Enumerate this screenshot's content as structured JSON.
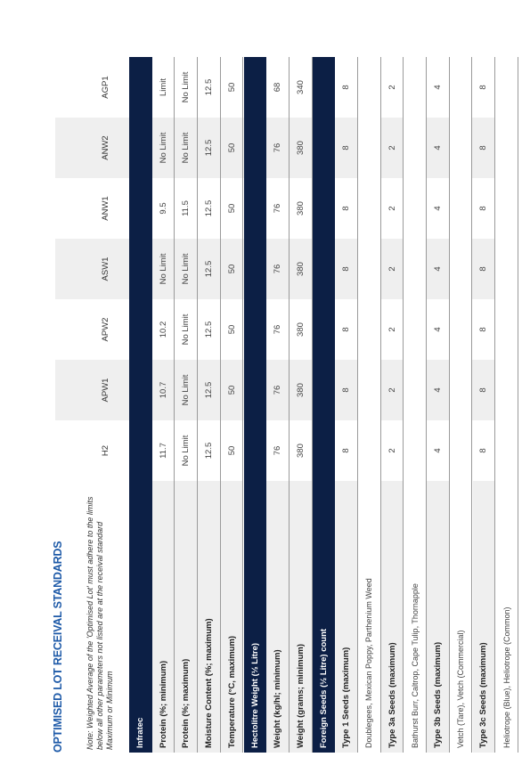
{
  "title": "OPTIMISED LOT RECEIVAL STANDARDS",
  "note": "Note: Weighted Average of the 'Optimised Lot' must adhere to the limits below all other parameters not listed are at the receival standard Maximum or Minimum",
  "columns": [
    "H2",
    "APW1",
    "APW2",
    "ASW1",
    "ANW1",
    "ANW2",
    "AGP1"
  ],
  "sections": [
    {
      "title": "Infratec",
      "rows": [
        {
          "label": "Protein (%; minimum)",
          "values": [
            "11.7",
            "10.7",
            "10.2",
            "No Limit",
            "9.5",
            "No Limit",
            "Limit"
          ]
        },
        {
          "label": "Protein (%; maximum)",
          "values": [
            "No Limit",
            "No Limit",
            "No Limit",
            "No Limit",
            "11.5",
            "No Limit",
            "No Limit"
          ]
        },
        {
          "label": "Moisture Content (%; maximum)",
          "values": [
            "12.5",
            "12.5",
            "12.5",
            "12.5",
            "12.5",
            "12.5",
            "12.5"
          ]
        },
        {
          "label": "Temperature (°C, maximum)",
          "values": [
            "50",
            "50",
            "50",
            "50",
            "50",
            "50",
            "50"
          ]
        }
      ]
    },
    {
      "title": "Hectolitre Weight (½ Litre)",
      "rows": [
        {
          "label": "Weight (kg/hl; minimum)",
          "values": [
            "76",
            "76",
            "76",
            "76",
            "76",
            "76",
            "68"
          ]
        },
        {
          "label": "Weight (grams; minimum)",
          "values": [
            "380",
            "380",
            "380",
            "380",
            "380",
            "380",
            "340"
          ]
        }
      ]
    },
    {
      "title": "Foreign Seeds (½ Litre) count",
      "rows": [
        {
          "label": "Type 1 Seeds (maximum)",
          "values": [
            "8",
            "8",
            "8",
            "8",
            "8",
            "8",
            "8"
          ]
        },
        {
          "label": "Doublegees, Mexican Poppy, Parthenium Weed"
        },
        {
          "label": "Type 3a Seeds (maximum)",
          "values": [
            "2",
            "2",
            "2",
            "2",
            "2",
            "2",
            "2"
          ]
        },
        {
          "label": "Bathurst Burr, Caltrop, Cape Tulip, Thornapple"
        },
        {
          "label": "Type 3b Seeds (maximum)",
          "values": [
            "4",
            "4",
            "4",
            "4",
            "4",
            "4",
            "4"
          ]
        },
        {
          "label": "Vetch (Tare), Vetch (Commercial)"
        },
        {
          "label": "Type 3c Seeds (maximum)",
          "values": [
            "8",
            "8",
            "8",
            "8",
            "8",
            "8",
            "8"
          ]
        },
        {
          "label": "Heliotrope (Blue), Heliotrope (Common)"
        }
      ]
    }
  ]
}
